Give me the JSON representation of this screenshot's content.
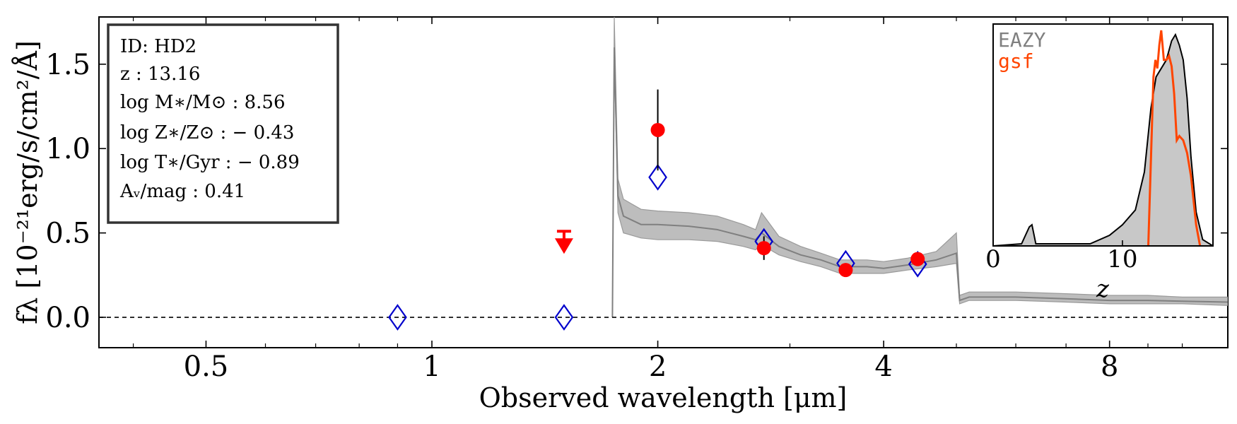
{
  "chart_data": {
    "type": "scatter",
    "main": {
      "xlabel": "Observed wavelength [μm]",
      "ylabel": "fλ [10⁻²¹erg/s/cm²/Å]",
      "xscale": "log",
      "xlim": [
        0.36,
        11.5
      ],
      "ylim": [
        -0.18,
        1.78
      ],
      "x_ticks": [
        0.5,
        1,
        2,
        4,
        8
      ],
      "x_tick_labels": [
        "0.5",
        "1",
        "2",
        "4",
        "8"
      ],
      "y_ticks": [
        0.0,
        0.5,
        1.0,
        1.5
      ],
      "y_tick_labels": [
        "0.0",
        "0.5",
        "1.0",
        "1.5"
      ],
      "zero_line": true,
      "info_box": {
        "position": "top-left",
        "lines": [
          "ID: HD2",
          "z : 13.16",
          "log M∗/M⊙ : 8.56",
          "log Z∗/Z⊙ : − 0.43",
          "log T∗/Gyr : − 0.89",
          "Aᵥ/mag : 0.41"
        ]
      },
      "observed_points": {
        "name": "observed flux",
        "color": "#ff0000",
        "x": [
          2.0,
          2.77,
          3.56,
          4.44
        ],
        "y": [
          1.11,
          0.41,
          0.28,
          0.345
        ],
        "yerr": [
          0.24,
          0.07,
          0.04,
          0.04
        ]
      },
      "upper_limits": {
        "name": "upper limit",
        "color": "#ff0000",
        "x": [
          1.5
        ],
        "y": [
          0.51
        ]
      },
      "model_photometry": {
        "name": "model photometry",
        "color": "#0000cc",
        "marker": "diamond",
        "x": [
          0.9,
          1.5,
          2.0,
          2.77,
          3.56,
          4.44
        ],
        "y": [
          0.0,
          0.0,
          0.83,
          0.45,
          0.32,
          0.315
        ]
      },
      "model_spectrum": {
        "name": "best-fit SED",
        "color": "#808080",
        "x": [
          1.74,
          1.75,
          1.77,
          1.8,
          1.9,
          2.0,
          2.2,
          2.4,
          2.6,
          2.7,
          2.75,
          2.9,
          3.1,
          3.3,
          3.5,
          3.8,
          4.0,
          4.3,
          4.7,
          5.0,
          5.05,
          5.2,
          6.0,
          7.0,
          8.0,
          9.0,
          10.0,
          11.5
        ],
        "y": [
          0.0,
          1.6,
          0.72,
          0.6,
          0.55,
          0.55,
          0.54,
          0.52,
          0.48,
          0.46,
          0.5,
          0.42,
          0.37,
          0.34,
          0.3,
          0.3,
          0.29,
          0.31,
          0.34,
          0.38,
          0.1,
          0.12,
          0.12,
          0.11,
          0.1,
          0.1,
          0.095,
          0.09
        ],
        "band_low": [
          0.0,
          1.55,
          0.62,
          0.5,
          0.47,
          0.46,
          0.46,
          0.45,
          0.42,
          0.4,
          0.43,
          0.37,
          0.33,
          0.3,
          0.26,
          0.26,
          0.26,
          0.28,
          0.3,
          0.32,
          0.08,
          0.1,
          0.1,
          0.09,
          0.08,
          0.08,
          0.08,
          0.07
        ],
        "band_high": [
          0.0,
          1.78,
          0.82,
          0.7,
          0.64,
          0.63,
          0.62,
          0.6,
          0.55,
          0.52,
          0.62,
          0.48,
          0.42,
          0.38,
          0.34,
          0.34,
          0.33,
          0.35,
          0.39,
          0.5,
          0.13,
          0.15,
          0.15,
          0.14,
          0.13,
          0.13,
          0.12,
          0.12
        ]
      }
    },
    "inset": {
      "xlabel": "z",
      "xlim": [
        0,
        17
      ],
      "ylim": [
        0,
        1.05
      ],
      "x_ticks": [
        0,
        10
      ],
      "x_tick_labels": [
        "0",
        "10"
      ],
      "legend": [
        {
          "label": "EAZY",
          "color": "#808080"
        },
        {
          "label": "gsf",
          "color": "#ff4500"
        }
      ],
      "series": [
        {
          "name": "EAZY",
          "color": "#000000",
          "fill": "#c8c8c8",
          "x": [
            0,
            2.2,
            2.8,
            3.0,
            3.3,
            7.5,
            9.0,
            10.0,
            11.0,
            11.7,
            12.2,
            12.6,
            13.0,
            13.4,
            13.8,
            14.1,
            14.4,
            14.7,
            15.0,
            15.3,
            15.7,
            16.2,
            17.0
          ],
          "y": [
            0,
            0.01,
            0.09,
            0.1,
            0.01,
            0.01,
            0.05,
            0.1,
            0.17,
            0.35,
            0.65,
            0.8,
            0.84,
            0.88,
            0.97,
            1.0,
            0.95,
            0.88,
            0.7,
            0.42,
            0.16,
            0.03,
            0.0
          ]
        },
        {
          "name": "gsf",
          "color": "#ff4500",
          "x": [
            12.0,
            12.4,
            12.55,
            12.7,
            12.85,
            13.0,
            13.2,
            13.4,
            13.6,
            13.8,
            14.0,
            14.2,
            14.4,
            14.7,
            15.0,
            15.3,
            15.7,
            16.0
          ],
          "y": [
            0.0,
            0.8,
            0.88,
            0.84,
            0.95,
            1.02,
            0.88,
            0.88,
            0.9,
            0.85,
            0.72,
            0.5,
            0.52,
            0.5,
            0.44,
            0.33,
            0.1,
            0.0
          ]
        }
      ]
    }
  }
}
